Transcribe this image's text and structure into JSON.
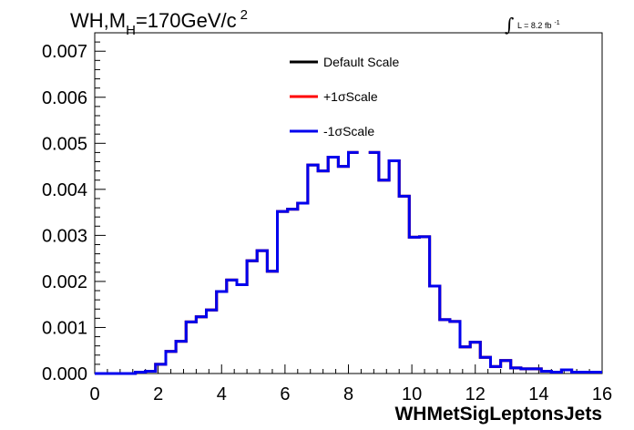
{
  "chart_data": {
    "type": "line",
    "title": {
      "prefix": "WH,M",
      "subscript": "H",
      "main": "=170GeV/c",
      "superscript": "2"
    },
    "luminosity": {
      "symbol": "∫",
      "text": "L = 8.2 fb",
      "superscript": "-1"
    },
    "xlabel": "WHMetSigLeptonsJets",
    "ylabel": "",
    "xlim": [
      0,
      16
    ],
    "ylim": [
      0,
      0.0074
    ],
    "x_ticks": [
      0,
      2,
      4,
      6,
      8,
      10,
      12,
      14,
      16
    ],
    "x_tick_labels": [
      "0",
      "2",
      "4",
      "6",
      "8",
      "10",
      "12",
      "14",
      "16"
    ],
    "y_ticks": [
      0,
      0.001,
      0.002,
      0.003,
      0.004,
      0.005,
      0.006,
      0.007
    ],
    "y_tick_labels": [
      "0.000",
      "0.001",
      "0.002",
      "0.003",
      "0.004",
      "0.005",
      "0.006",
      "0.007"
    ],
    "legend_position": "top-center",
    "bin_width": 0.32,
    "bin_edges_start": 0,
    "series": [
      {
        "name": "Default Scale",
        "color": "#000000",
        "values": [
          0,
          0,
          0,
          0,
          3e-05,
          5e-05,
          0.0002,
          0.00048,
          0.0007,
          0.00112,
          0.00123,
          0.00138,
          0.00178,
          0.00203,
          0.00193,
          0.00245,
          0.00267,
          0.00222,
          0.00352,
          0.00357,
          0.0037,
          0.00453,
          0.0044,
          0.0047,
          0.0045,
          0.0048,
          null,
          0.0048,
          0.0042,
          0.00462,
          0.00385,
          0.00296,
          0.00297,
          0.0019,
          0.00117,
          0.00113,
          0.00058,
          0.00068,
          0.00035,
          0.00015,
          0.00028,
          0.00012,
          0.0001,
          0.0001,
          5e-05,
          3e-05,
          8e-05,
          3e-05,
          3e-05,
          3e-05
        ]
      },
      {
        "name": "+1σScale",
        "color": "#ff0000",
        "values": [
          0,
          0,
          0,
          0,
          3e-05,
          5e-05,
          0.0002,
          0.00048,
          0.0007,
          0.00112,
          0.00123,
          0.00138,
          0.00178,
          0.00203,
          0.00193,
          0.00245,
          0.00267,
          0.00222,
          0.00352,
          0.00357,
          0.0037,
          0.00453,
          0.0044,
          0.0047,
          0.0045,
          0.0048,
          null,
          0.0048,
          0.0042,
          0.00462,
          0.00385,
          0.00296,
          0.00297,
          0.0019,
          0.00117,
          0.00113,
          0.00058,
          0.00068,
          0.00035,
          0.00015,
          0.00028,
          0.00012,
          0.0001,
          0.0001,
          5e-05,
          3e-05,
          8e-05,
          3e-05,
          3e-05,
          3e-05
        ]
      },
      {
        "name": "-1σScale",
        "color": "#0000ee",
        "values": [
          0,
          0,
          0,
          0,
          3e-05,
          5e-05,
          0.0002,
          0.00048,
          0.0007,
          0.00112,
          0.00123,
          0.00138,
          0.00178,
          0.00203,
          0.00193,
          0.00245,
          0.00267,
          0.00222,
          0.00352,
          0.00357,
          0.0037,
          0.00453,
          0.0044,
          0.0047,
          0.0045,
          0.0048,
          null,
          0.0048,
          0.0042,
          0.00462,
          0.00385,
          0.00296,
          0.00297,
          0.0019,
          0.00117,
          0.00113,
          0.00058,
          0.00068,
          0.00035,
          0.00015,
          0.00028,
          0.00012,
          0.0001,
          0.0001,
          5e-05,
          3e-05,
          8e-05,
          3e-05,
          3e-05,
          3e-05
        ]
      }
    ]
  }
}
